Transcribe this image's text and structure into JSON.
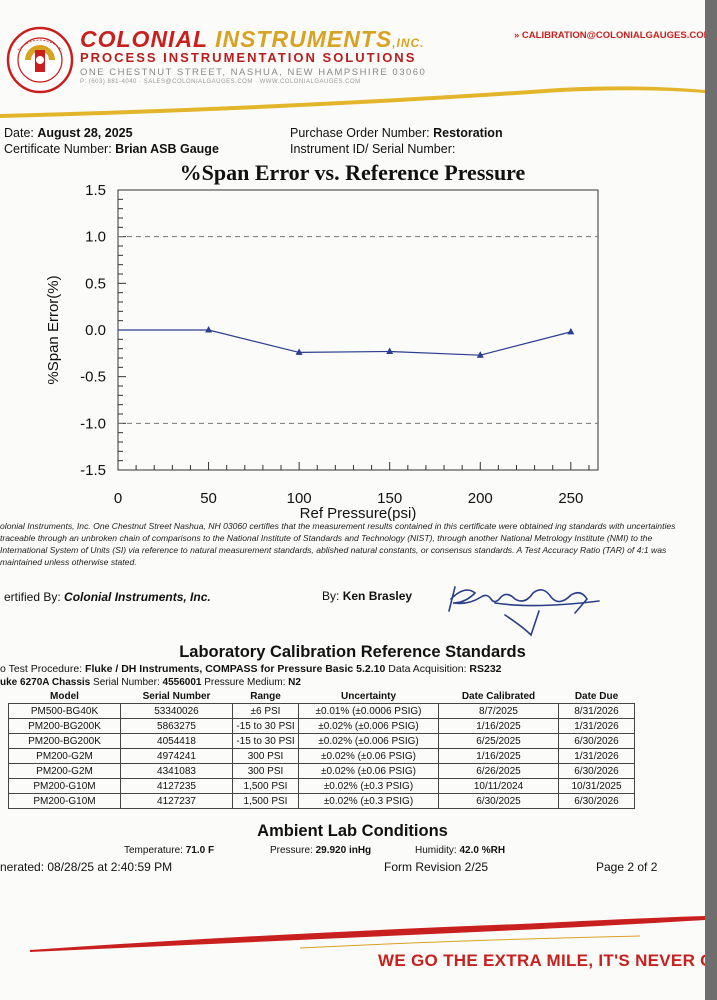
{
  "header": {
    "company_part1": "COLONIAL ",
    "company_part2": "INSTRUMENTS",
    "company_suffix": ",INC.",
    "tagline": "PROCESS INSTRUMENTATION SOLUTIONS",
    "address": "ONE CHESTNUT STREET, NASHUA, NEW HAMPSHIRE 03060",
    "contact": "P: (603) 881-4040  ·  SALES@COLONIALGAUGES.COM  ·  WWW.COLONIALGAUGES.COM",
    "email": "» CALIBRATION@COLONIALGAUGES.COM",
    "seal_text": "PRESSURE · LEVEL · TEMPERATURE · FLOW"
  },
  "certificate": {
    "date_label": "Date:",
    "date_value": "August 28, 2025",
    "cert_label": "Certificate Number:",
    "cert_value": "Brian ASB Gauge",
    "po_label": "Purchase Order Number:",
    "po_value": "Restoration",
    "instrument_label": "Instrument ID/ Serial Number:"
  },
  "chart_data": {
    "type": "line",
    "title": "%Span Error vs. Reference Pressure",
    "xlabel": "Ref Pressure(psi)",
    "ylabel": "%Span Error(%)",
    "xlim": [
      0,
      265
    ],
    "ylim": [
      -1.5,
      1.5
    ],
    "x_ticks": [
      0,
      50,
      100,
      150,
      200,
      250
    ],
    "y_ticks": [
      1.5,
      1.0,
      0.5,
      0.0,
      -0.5,
      -1.0,
      -1.5
    ],
    "y_tick_labels": [
      "1.5",
      "1.0",
      "0.5",
      "0.0",
      "-0.5",
      "-1.0",
      "-1.5"
    ],
    "dashed_reference_lines": [
      1.0,
      -1.0
    ],
    "series": [
      {
        "x": [
          0,
          50,
          100,
          150,
          200,
          250
        ],
        "y": [
          0.0,
          0.0,
          -0.24,
          -0.23,
          -0.27,
          -0.02
        ]
      }
    ],
    "line_color": "#2a3d8f",
    "marker": "triangle"
  },
  "certification_text": "olonial Instruments, Inc. One Chestnut Street Nashua, NH 03060 certifies that the measurement results contained in this certificate were obtained ing standards with uncertainties traceable through an unbroken chain of comparisons to the National Institute of Standards and Technology (NIST), through another National Metrology Institute (NMI) to the International System of Units (SI) via reference to natural measurement standards, ablished natural constants, or consensus standards. A Test Accuracy Ratio (TAR) of 4:1 was maintained unless otherwise stated.",
  "certified_by_label": "ertified By:",
  "certified_by_value": "Colonial Instruments, Inc.",
  "by_label": "By:",
  "by_value": "Ken Brasley",
  "lab": {
    "title": "Laboratory Calibration Reference Standards",
    "procedure_label": "o Test Procedure:",
    "procedure_value": "Fluke / DH Instruments, COMPASS for Pressure Basic 5.2.10",
    "daq_label": "Data Acquisition:",
    "daq_value": "RS232",
    "chassis_label": "uke 6270A Chassis",
    "serial_label": "Serial Number:",
    "serial_value": "4556001",
    "medium_label": "Pressure Medium:",
    "medium_value": "N2",
    "columns": [
      "Model",
      "Serial Number",
      "Range",
      "Uncertainty",
      "Date Calibrated",
      "Date Due"
    ],
    "rows": [
      [
        "PM500-BG40K",
        "53340026",
        "±6 PSI",
        "±0.01% (±0.0006 PSIG)",
        "8/7/2025",
        "8/31/2026"
      ],
      [
        "PM200-BG200K",
        "5863275",
        "-15 to 30 PSI",
        "±0.02% (±0.006 PSIG)",
        "1/16/2025",
        "1/31/2026"
      ],
      [
        "PM200-BG200K",
        "4054418",
        "-15 to 30 PSI",
        "±0.02% (±0.006 PSIG)",
        "6/25/2025",
        "6/30/2026"
      ],
      [
        "PM200-G2M",
        "4974241",
        "300 PSI",
        "±0.02% (±0.06 PSIG)",
        "1/16/2025",
        "1/31/2026"
      ],
      [
        "PM200-G2M",
        "4341083",
        "300 PSI",
        "±0.02% (±0.06 PSIG)",
        "6/26/2025",
        "6/30/2026"
      ],
      [
        "PM200-G10M",
        "4127235",
        "1,500 PSI",
        "±0.02% (±0.3 PSIG)",
        "10/11/2024",
        "10/31/2025"
      ],
      [
        "PM200-G10M",
        "4127237",
        "1,500 PSI",
        "±0.02% (±0.3 PSIG)",
        "6/30/2025",
        "6/30/2026"
      ]
    ]
  },
  "ambient": {
    "title": "Ambient Lab Conditions",
    "temp_label": "Temperature:",
    "temp_value": "71.0 F",
    "pressure_label": "Pressure:",
    "pressure_value": "29.920 inHg",
    "humidity_label": "Humidity:",
    "humidity_value": "42.0 %RH"
  },
  "footer": {
    "generated": "nerated: 08/28/25 at 2:40:59 PM",
    "form_revision": "Form Revision 2/25",
    "page": "Page 2  of 2",
    "slogan": "WE GO THE EXTRA MILE, IT'S NEVER CROWDED!"
  }
}
